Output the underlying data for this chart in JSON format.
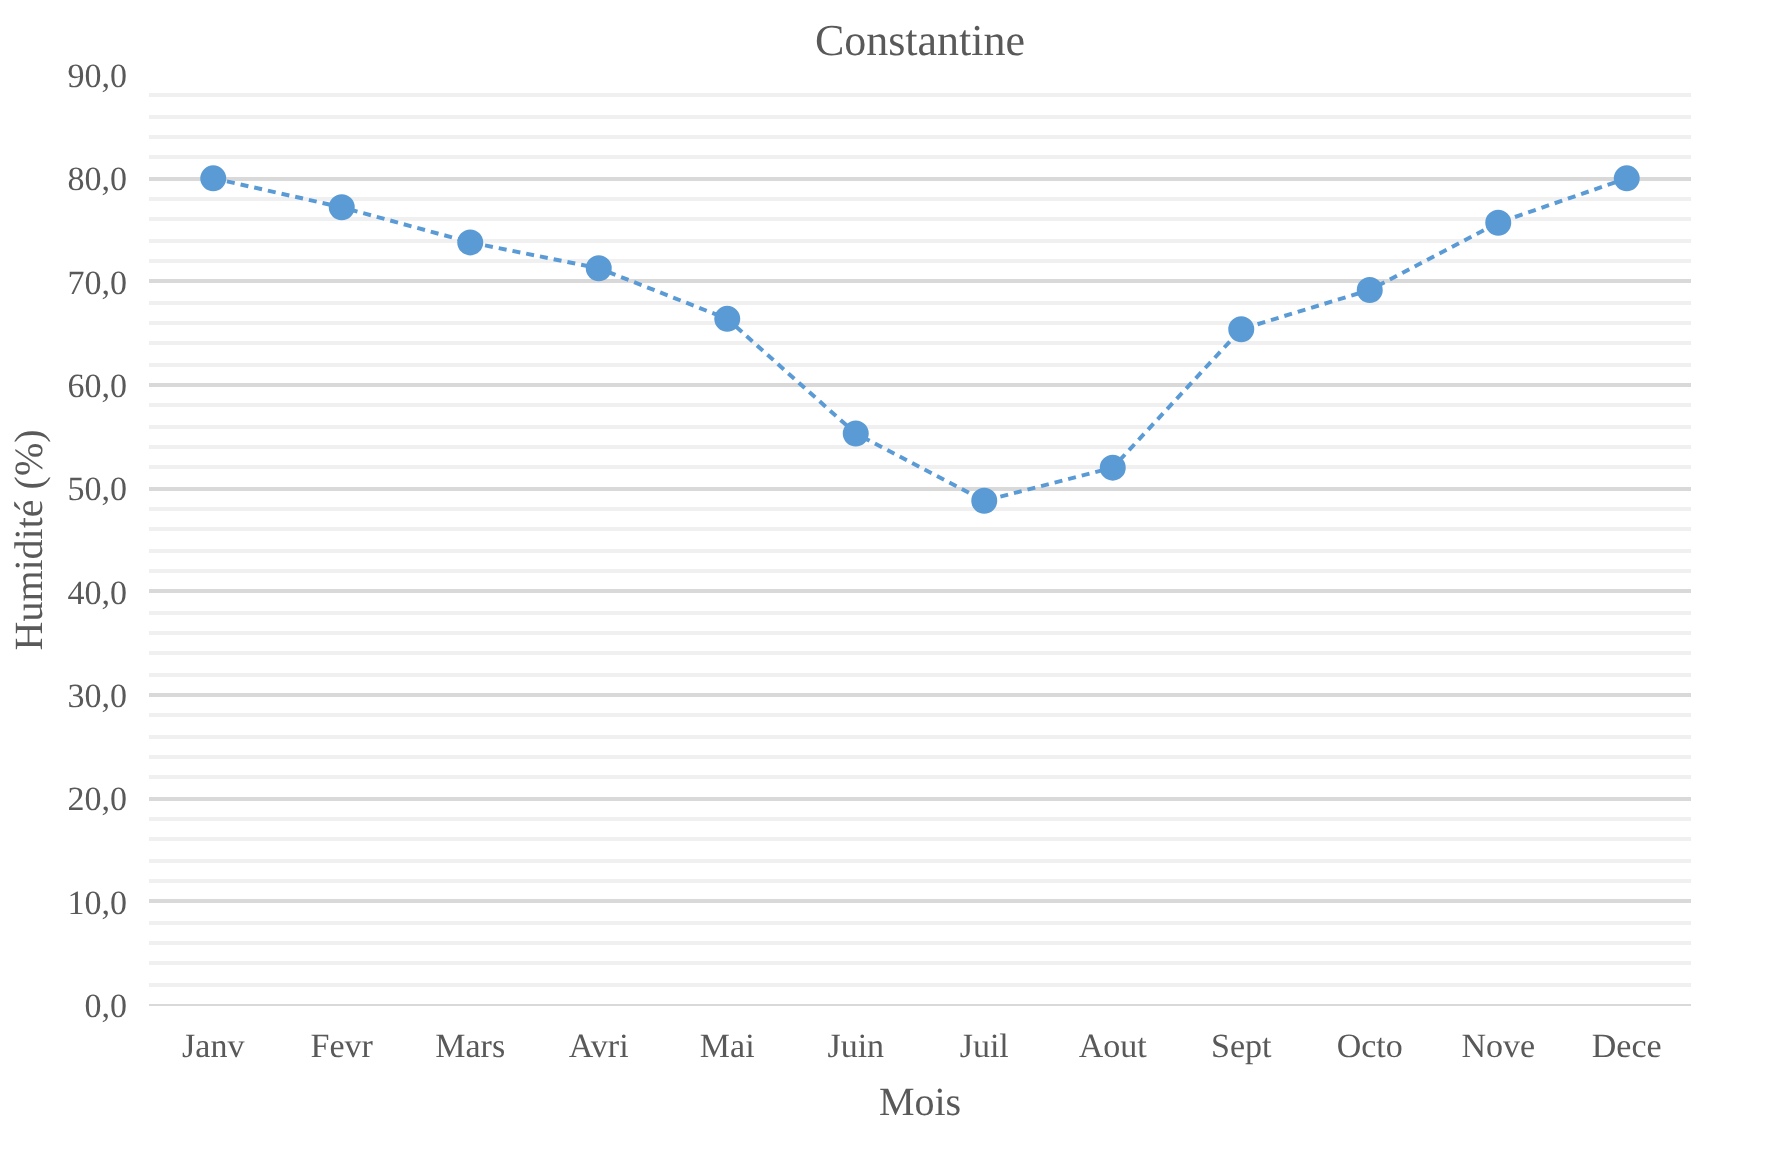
{
  "chart_data": {
    "type": "line",
    "title": "Constantine",
    "xlabel": "Mois",
    "ylabel": "Humidité (%)",
    "categories": [
      "Janv",
      "Fevr",
      "Mars",
      "Avri",
      "Mai",
      "Juin",
      "Juil",
      "Aout",
      "Sept",
      "Octo",
      "Nove",
      "Dece"
    ],
    "series": [
      {
        "color": "#5b9bd5",
        "values": [
          80.0,
          77.2,
          73.8,
          71.3,
          66.4,
          55.3,
          48.8,
          52.0,
          65.4,
          69.2,
          75.7,
          80.0
        ]
      }
    ],
    "ylim": [
      0,
      90
    ],
    "yticks": [
      {
        "value": 0,
        "label": "0,0"
      },
      {
        "value": 10,
        "label": "10,0"
      },
      {
        "value": 20,
        "label": "20,0"
      },
      {
        "value": 30,
        "label": "30,0"
      },
      {
        "value": 40,
        "label": "40,0"
      },
      {
        "value": 50,
        "label": "50,0"
      },
      {
        "value": 60,
        "label": "60,0"
      },
      {
        "value": 70,
        "label": "70,0"
      },
      {
        "value": 80,
        "label": "80,0"
      },
      {
        "value": 90,
        "label": "90,0"
      }
    ],
    "grid": "y",
    "marker": "circle",
    "line_style": "dashed"
  }
}
